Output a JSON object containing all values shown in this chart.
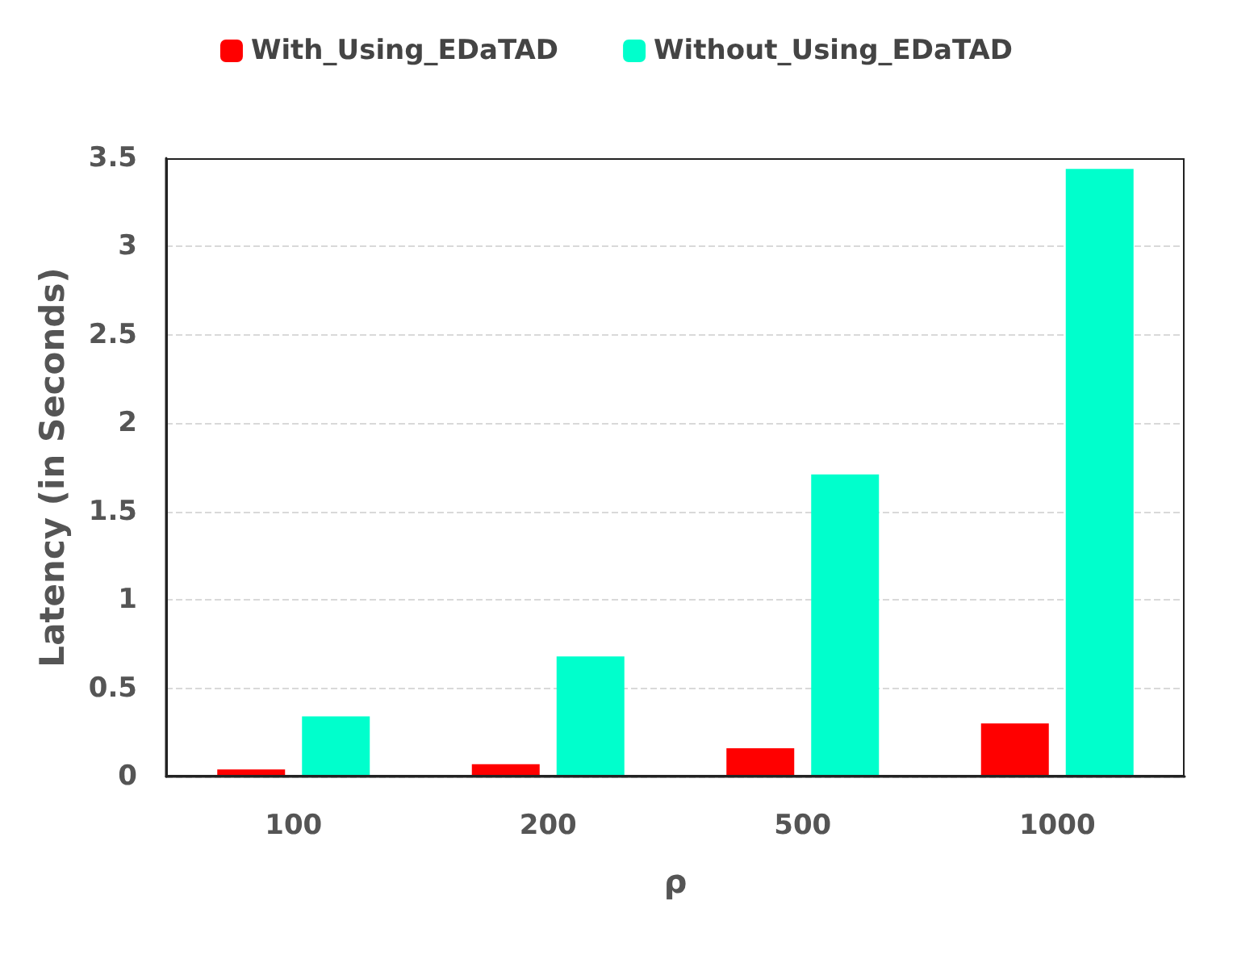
{
  "chart_data": {
    "type": "bar",
    "xlabel": "ρ",
    "ylabel": "Latency (in Seconds)",
    "categories": [
      "100",
      "200",
      "500",
      "1000"
    ],
    "series": [
      {
        "name": "With_Using_EDaTAD",
        "color": "#ff0000",
        "values": [
          0.04,
          0.07,
          0.16,
          0.3
        ]
      },
      {
        "name": "Without_Using_EDaTAD",
        "color": "#00ffcc",
        "values": [
          0.34,
          0.68,
          1.71,
          3.44
        ]
      }
    ],
    "ylim": [
      0,
      3.5
    ],
    "yticks": [
      0,
      0.5,
      1,
      1.5,
      2,
      2.5,
      3,
      3.5
    ],
    "grid": "y",
    "legend": "top"
  }
}
